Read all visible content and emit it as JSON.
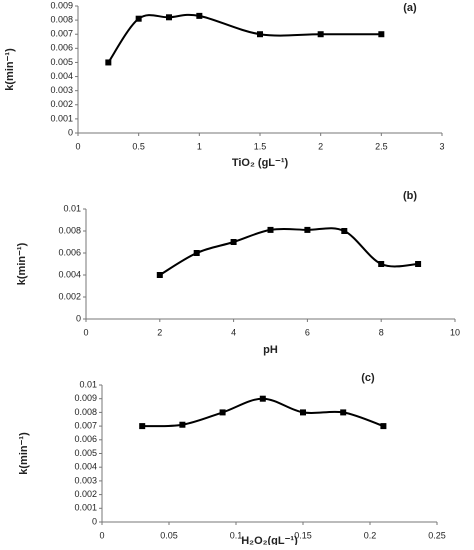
{
  "chart_data": [
    {
      "type": "line",
      "annotation": "(a)",
      "x_label": "TiO₂ (gL⁻¹)",
      "y_label": "k(min⁻¹)",
      "color": "#000000",
      "x": [
        0.25,
        0.5,
        0.75,
        1,
        1.5,
        2,
        2.5
      ],
      "values": [
        0.005,
        0.0081,
        0.0082,
        0.0083,
        0.007,
        0.007,
        0.007
      ],
      "xlim": [
        0,
        3
      ],
      "xticks": [
        0,
        0.5,
        1,
        1.5,
        2,
        2.5,
        3
      ],
      "ylim": [
        0,
        0.009
      ],
      "yticks": [
        0,
        0.001,
        0.002,
        0.003,
        0.004,
        0.005,
        0.006,
        0.007,
        0.008,
        0.009
      ]
    },
    {
      "type": "line",
      "annotation": "(b)",
      "x_label": "pH",
      "y_label": "k(min⁻¹)",
      "color": "#000000",
      "x": [
        2,
        3,
        4,
        5,
        6,
        7,
        8,
        9
      ],
      "values": [
        0.004,
        0.006,
        0.007,
        0.0081,
        0.0081,
        0.008,
        0.005,
        0.005
      ],
      "xlim": [
        0,
        10
      ],
      "xticks": [
        0,
        2,
        4,
        6,
        8,
        10
      ],
      "ylim": [
        0,
        0.01
      ],
      "yticks": [
        0,
        0.002,
        0.004,
        0.006,
        0.008,
        0.01
      ]
    },
    {
      "type": "line",
      "annotation": "(c)",
      "x_label": "H₂O₂(gL⁻¹)",
      "y_label": "k(min⁻¹)",
      "color": "#000000",
      "x": [
        0.03,
        0.06,
        0.09,
        0.12,
        0.15,
        0.18,
        0.21
      ],
      "values": [
        0.007,
        0.0071,
        0.008,
        0.009,
        0.008,
        0.008,
        0.007
      ],
      "xlim": [
        0,
        0.25
      ],
      "xticks": [
        0,
        0.05,
        0.1,
        0.15,
        0.2,
        0.25
      ],
      "ylim": [
        0,
        0.01
      ],
      "yticks": [
        0,
        0.001,
        0.002,
        0.003,
        0.004,
        0.005,
        0.006,
        0.007,
        0.008,
        0.009,
        0.01
      ]
    }
  ]
}
